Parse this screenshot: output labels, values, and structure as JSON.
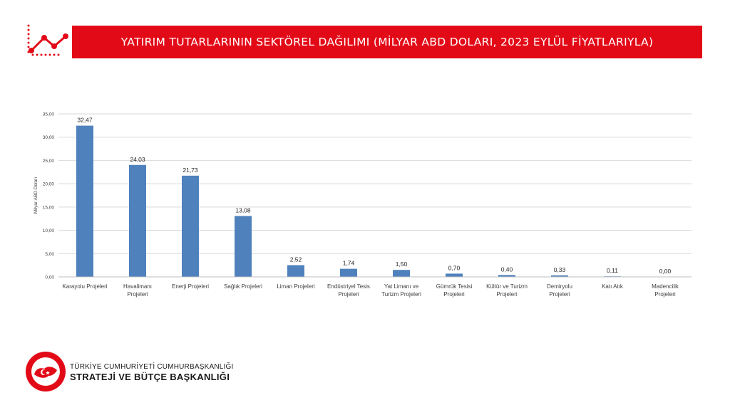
{
  "header": {
    "title": "YATIRIM TUTARLARININ SEKTÖREL DAĞILIMI (MİLYAR ABD DOLARI, 2023 EYLÜL FİYATLARIYLA)"
  },
  "colors": {
    "accent": "#e30a17",
    "bar": "#4f81bd",
    "grid": "#d9d9d9",
    "text": "#404040"
  },
  "chart_data": {
    "type": "bar",
    "categories": [
      [
        "Karayolu Projeleri"
      ],
      [
        "Havalimanı",
        "Projeleri"
      ],
      [
        "Enerji Projeleri"
      ],
      [
        "Sağlık Projeleri"
      ],
      [
        "Liman Projeleri"
      ],
      [
        "Endüstriyel Tesis",
        "Projeleri"
      ],
      [
        "Yat Limanı ve",
        "Turizm Projeleri"
      ],
      [
        "Gümrük Tesisi",
        "Projeleri"
      ],
      [
        "Kültür ve Turizm",
        "Projeleri"
      ],
      [
        "Demiryolu",
        "Projeleri"
      ],
      [
        "Katı Atık"
      ],
      [
        "Madencilik",
        "Projeleri"
      ]
    ],
    "values": [
      32.47,
      24.03,
      21.73,
      13.08,
      2.52,
      1.74,
      1.5,
      0.7,
      0.4,
      0.33,
      0.11,
      0.0
    ],
    "value_labels": [
      "32,47",
      "24,03",
      "21,73",
      "13,08",
      "2,52",
      "1,74",
      "1,50",
      "0,70",
      "0,40",
      "0,33",
      "0,11",
      "0,00"
    ],
    "yticks": [
      0,
      5,
      10,
      15,
      20,
      25,
      30,
      35
    ],
    "ytick_labels": [
      "0,00",
      "5,00",
      "10,00",
      "15,00",
      "20,00",
      "25,00",
      "30,00",
      "35,00"
    ],
    "ylim": [
      0,
      35
    ],
    "ylabel": "Milyar ABD Doları",
    "xlabel": "",
    "grid": true
  },
  "footer": {
    "line1": "TÜRKİYE CUMHURİYETİ CUMHURBAŞKANLIĞI",
    "line2": "STRATEJİ VE BÜTÇE BAŞKANLIĞI",
    "logo": "sbb-seal-logo"
  },
  "icons": {
    "header": "line-chart-icon"
  }
}
